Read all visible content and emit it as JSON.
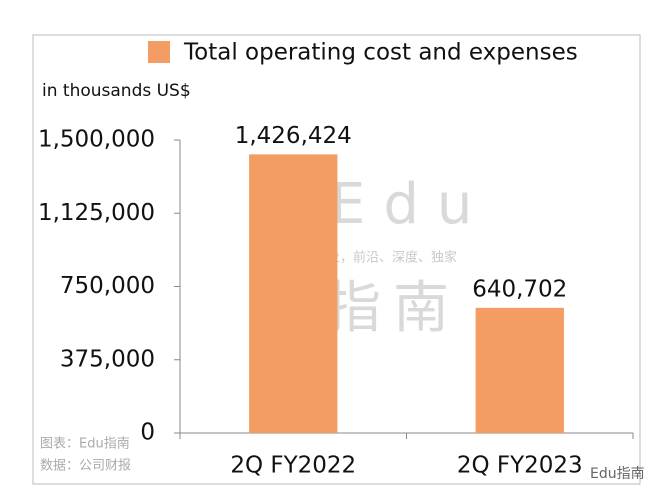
{
  "chart_data": {
    "type": "bar",
    "legend_label": "Total operating cost and expenses",
    "y_label": "in thousands US$",
    "categories": [
      "2Q FY2022",
      "2Q FY2023"
    ],
    "values": [
      1426424,
      640702
    ],
    "value_labels": [
      "1,426,424",
      "640,702"
    ],
    "color": "#f39c63",
    "ylim": [
      0,
      1500000
    ],
    "yticks": [
      0,
      {
        "value": 375000,
        "label": "375,000"
      },
      {
        "value": 750000,
        "label": "750,000"
      },
      {
        "value": 1125000,
        "label": "1,125,000"
      },
      {
        "value": 1500000,
        "label": "1,500,000"
      }
    ],
    "grid": false,
    "watermark": [
      "Edu",
      "指南",
      "教育行业，前沿、深度、独家"
    ],
    "notes": [
      "图表：Edu指南",
      "数据：公司财报"
    ],
    "brand": "Edu指南"
  }
}
